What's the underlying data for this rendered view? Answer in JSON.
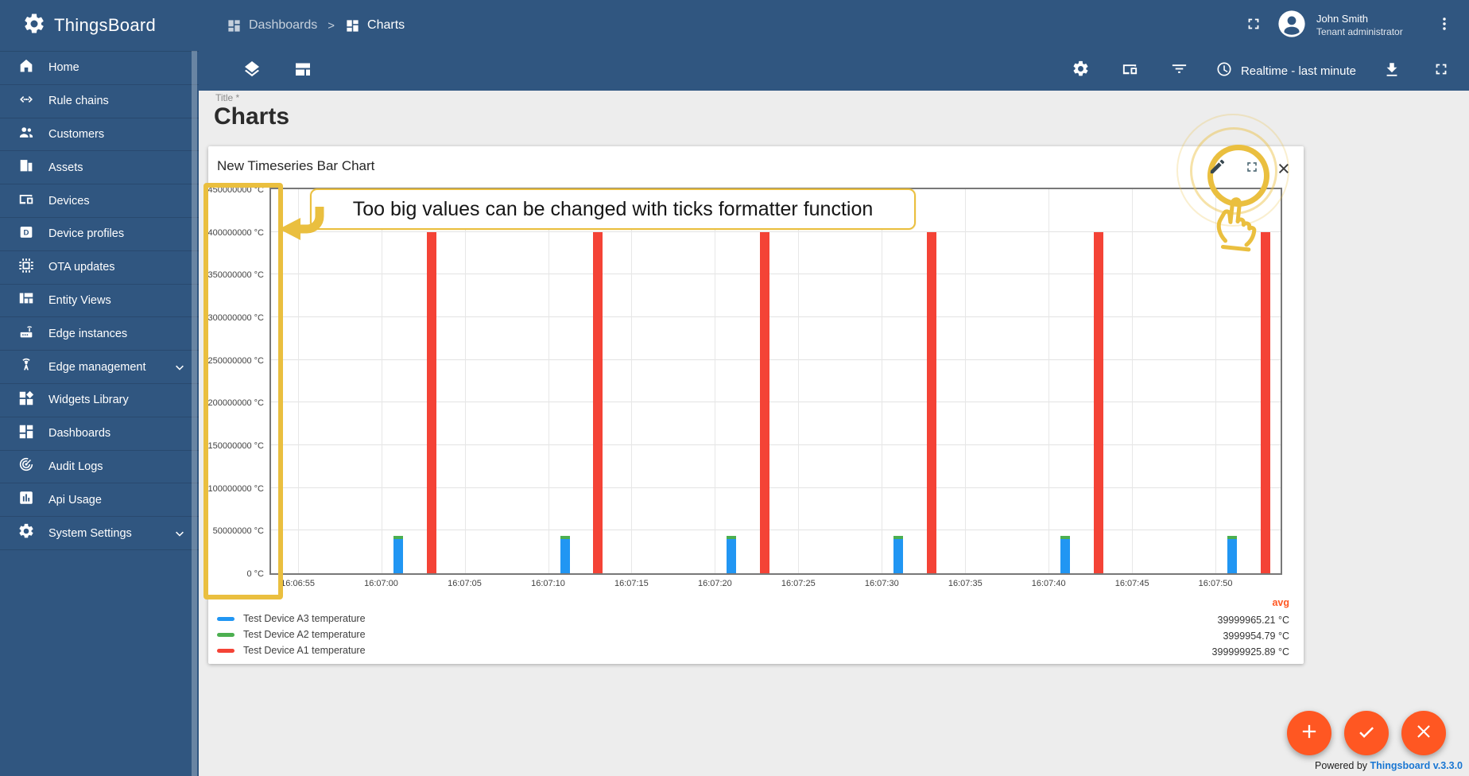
{
  "app": {
    "logo_title": "ThingsBoard"
  },
  "header": {
    "breadcrumb_separator": ">",
    "breadcrumb": [
      {
        "label": "Dashboards"
      },
      {
        "label": "Charts"
      }
    ],
    "user": {
      "name": "John Smith",
      "role": "Tenant administrator"
    }
  },
  "toolbar": {
    "timewindow_label": "Realtime - last minute"
  },
  "sidebar": {
    "items": [
      {
        "label": "Home",
        "icon": "home-icon"
      },
      {
        "label": "Rule chains",
        "icon": "rule-chains-icon"
      },
      {
        "label": "Customers",
        "icon": "customers-icon"
      },
      {
        "label": "Assets",
        "icon": "assets-icon"
      },
      {
        "label": "Devices",
        "icon": "devices-icon"
      },
      {
        "label": "Device profiles",
        "icon": "device-profiles-icon"
      },
      {
        "label": "OTA updates",
        "icon": "ota-updates-icon"
      },
      {
        "label": "Entity Views",
        "icon": "entity-views-icon"
      },
      {
        "label": "Edge instances",
        "icon": "edge-instances-icon"
      },
      {
        "label": "Edge management",
        "icon": "edge-management-icon",
        "expandable": true
      },
      {
        "label": "Widgets Library",
        "icon": "widgets-library-icon"
      },
      {
        "label": "Dashboards",
        "icon": "dashboards-icon"
      },
      {
        "label": "Audit Logs",
        "icon": "audit-logs-icon"
      },
      {
        "label": "Api Usage",
        "icon": "api-usage-icon"
      },
      {
        "label": "System Settings",
        "icon": "system-settings-icon",
        "expandable": true
      }
    ]
  },
  "page": {
    "title_label": "Title *",
    "title": "Charts"
  },
  "widget": {
    "title": "New Timeseries Bar Chart"
  },
  "annotation": {
    "callout": "Too big values can be changed with ticks formatter function"
  },
  "chart_data": {
    "type": "bar",
    "title": "New Timeseries Bar Chart",
    "y_unit": "°C",
    "y_min": 0,
    "y_max": 450000000,
    "y_tick_step": 50000000,
    "x_ticks": [
      "16:06:55",
      "16:07:00",
      "16:07:05",
      "16:07:10",
      "16:07:15",
      "16:07:20",
      "16:07:25",
      "16:07:30",
      "16:07:35",
      "16:07:40",
      "16:07:45",
      "16:07:50"
    ],
    "x_axis_range": [
      "16:06:53.4",
      "16:07:53.9"
    ],
    "grid": true,
    "legend_position": "bottom",
    "aggregation": "avg",
    "series": [
      {
        "name": "Test Device A3 temperature",
        "color": "#2196f3",
        "stack": "A",
        "bar_times": [
          "16:07:01",
          "16:07:11",
          "16:07:21",
          "16:07:31",
          "16:07:41",
          "16:07:51"
        ],
        "values": [
          39999965.21,
          39999965.21,
          39999965.21,
          39999965.21,
          39999965.21,
          39999965.21
        ],
        "avg": "39999965.21 °C"
      },
      {
        "name": "Test Device A2 temperature",
        "color": "#4caf50",
        "stack": "A",
        "bar_times": [
          "16:07:01",
          "16:07:11",
          "16:07:21",
          "16:07:31",
          "16:07:41",
          "16:07:51"
        ],
        "values": [
          3999954.79,
          3999954.79,
          3999954.79,
          3999954.79,
          3999954.79,
          3999954.79
        ],
        "avg": "3999954.79 °C"
      },
      {
        "name": "Test Device A1 temperature",
        "color": "#f44336",
        "stack": null,
        "bar_times": [
          "16:07:03",
          "16:07:13",
          "16:07:23",
          "16:07:33",
          "16:07:43",
          "16:07:53"
        ],
        "values": [
          399999925.89,
          399999925.89,
          399999925.89,
          399999925.89,
          399999925.89,
          399999925.89
        ],
        "avg": "399999925.89 °C"
      }
    ]
  },
  "legend": {
    "avg_label": "avg"
  },
  "fabs": [
    {
      "name": "add-widget-fab",
      "glyph": "plus-icon"
    },
    {
      "name": "apply-changes-fab",
      "glyph": "check-icon"
    },
    {
      "name": "decline-changes-fab",
      "glyph": "cross-icon"
    }
  ],
  "footer": {
    "powered_by": "Powered by",
    "version_link": "Thingsboard v.3.3.0"
  }
}
